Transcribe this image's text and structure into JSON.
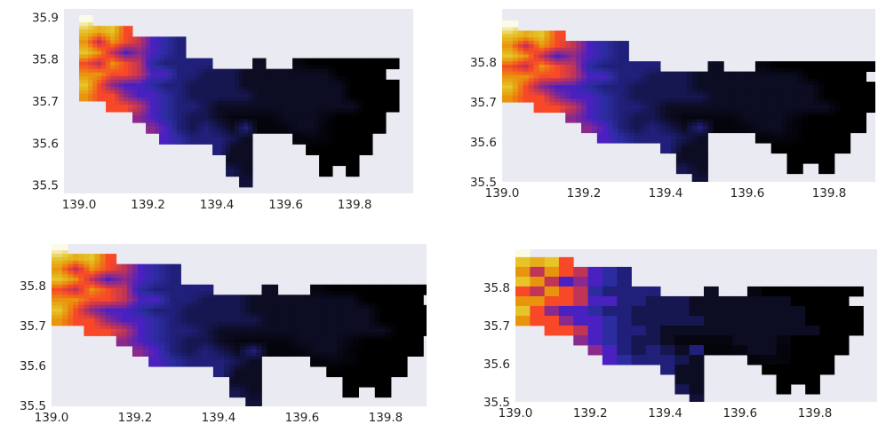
{
  "colormap": {
    "levels": [
      0,
      1,
      2,
      3,
      4,
      5,
      6,
      7,
      8,
      9,
      10,
      11
    ],
    "colors": [
      "#000000",
      "#0c0c22",
      "#161650",
      "#20207a",
      "#2c2ca0",
      "#4a20c0",
      "#8a2a8c",
      "#c03458",
      "#f84828",
      "#e8940c",
      "#e6c42a",
      "#fbfbe8"
    ]
  },
  "axes_background": "#eaeaf2",
  "grid_extent": {
    "lon": [
      139.0,
      139.929
    ],
    "lat": [
      35.905,
      35.495
    ]
  },
  "grid": [
    [
      11,
      null,
      null,
      null,
      null,
      null,
      null,
      null,
      null,
      null,
      null,
      null,
      null,
      null,
      null,
      null,
      null,
      null,
      null,
      null,
      null,
      null,
      null,
      null
    ],
    [
      10,
      9.5,
      10,
      8,
      null,
      null,
      null,
      null,
      null,
      null,
      null,
      null,
      null,
      null,
      null,
      null,
      null,
      null,
      null,
      null,
      null,
      null,
      null,
      null
    ],
    [
      9,
      7,
      9,
      8,
      7,
      5,
      4,
      3,
      null,
      null,
      null,
      null,
      null,
      null,
      null,
      null,
      null,
      null,
      null,
      null,
      null,
      null,
      null,
      null
    ],
    [
      10,
      9,
      7,
      5,
      6,
      5,
      4,
      3,
      null,
      null,
      null,
      null,
      null,
      null,
      null,
      null,
      null,
      null,
      null,
      null,
      null,
      null,
      null,
      null
    ],
    [
      8,
      7,
      9,
      8,
      7,
      4,
      3,
      3,
      3,
      3,
      null,
      null,
      null,
      1,
      null,
      null,
      0.5,
      0,
      0,
      0,
      0,
      0,
      0,
      0
    ],
    [
      9,
      9,
      8,
      8,
      7,
      5,
      5,
      3,
      3,
      2,
      2,
      2,
      1,
      1,
      1,
      1,
      1,
      1,
      1,
      0,
      0,
      0,
      0,
      null
    ],
    [
      10,
      8,
      6,
      5,
      5,
      4,
      3,
      3,
      2,
      2,
      2,
      2,
      1,
      1,
      1,
      1,
      1,
      1,
      1,
      1,
      0,
      0,
      0,
      0
    ],
    [
      9,
      8,
      8,
      6,
      5,
      5,
      4,
      3,
      2,
      2,
      2,
      2,
      2,
      1,
      1,
      1,
      1,
      1,
      1,
      1,
      0,
      0,
      0,
      0
    ],
    [
      null,
      null,
      8,
      8,
      7,
      5,
      4,
      3,
      3,
      2,
      1,
      1,
      1,
      1,
      1,
      1,
      1,
      1,
      1,
      1,
      1,
      0,
      0,
      0
    ],
    [
      null,
      null,
      null,
      null,
      6,
      5,
      4,
      3,
      2,
      2,
      1,
      0.5,
      0.5,
      0.5,
      0.5,
      1,
      1,
      1,
      0.5,
      0,
      0,
      0,
      0,
      null
    ],
    [
      null,
      null,
      null,
      null,
      null,
      6,
      5,
      3,
      2,
      3,
      2,
      1,
      3,
      0.3,
      0.3,
      0.5,
      1,
      1,
      0.3,
      0,
      0,
      0,
      0,
      null
    ],
    [
      null,
      null,
      null,
      null,
      null,
      null,
      5,
      4,
      3,
      3,
      3,
      2,
      1,
      null,
      null,
      null,
      0.3,
      0.5,
      0.3,
      0,
      0,
      0,
      null,
      null
    ],
    [
      null,
      null,
      null,
      null,
      null,
      null,
      null,
      null,
      null,
      null,
      3,
      1,
      1,
      null,
      null,
      null,
      null,
      0,
      0,
      0,
      0,
      0,
      null,
      null
    ],
    [
      null,
      null,
      null,
      null,
      null,
      null,
      null,
      null,
      null,
      null,
      null,
      1,
      1,
      null,
      null,
      null,
      null,
      null,
      0,
      0,
      0,
      null,
      null,
      null
    ],
    [
      null,
      null,
      null,
      null,
      null,
      null,
      null,
      null,
      null,
      null,
      null,
      2,
      1,
      null,
      null,
      null,
      null,
      null,
      0,
      null,
      0,
      null,
      null,
      null
    ],
    [
      null,
      null,
      null,
      null,
      null,
      null,
      null,
      null,
      null,
      null,
      null,
      null,
      1.5,
      null,
      null,
      null,
      null,
      null,
      null,
      null,
      null,
      null,
      null,
      null
    ]
  ],
  "chart_data": [
    {
      "type": "heatmap",
      "resolution": "fine",
      "xlim": [
        138.956,
        139.97
      ],
      "ylim": [
        35.48,
        35.92
      ],
      "xticks": [
        "139.0",
        "139.2",
        "139.4",
        "139.6",
        "139.8"
      ],
      "yticks": [
        "35.5",
        "35.6",
        "35.7",
        "35.8",
        "35.9"
      ],
      "grid": false
    },
    {
      "type": "heatmap",
      "resolution": "fine",
      "xlim": [
        139.0,
        139.913
      ],
      "ylim": [
        35.5,
        35.934
      ],
      "xticks": [
        "139.0",
        "139.2",
        "139.4",
        "139.6",
        "139.8"
      ],
      "yticks": [
        "35.5",
        "35.6",
        "35.7",
        "35.8"
      ],
      "grid": false
    },
    {
      "type": "heatmap",
      "resolution": "fine",
      "xlim": [
        139.0,
        139.898
      ],
      "ylim": [
        35.498,
        35.904
      ],
      "xticks": [
        "139.0",
        "139.2",
        "139.4",
        "139.6",
        "139.8"
      ],
      "yticks": [
        "35.5",
        "35.6",
        "35.7",
        "35.8"
      ],
      "grid": false
    },
    {
      "type": "heatmap",
      "resolution": "coarse",
      "xlim": [
        139.0,
        139.966
      ],
      "ylim": [
        35.5,
        35.9
      ],
      "xticks": [
        "139.0",
        "139.2",
        "139.4",
        "139.6",
        "139.8"
      ],
      "yticks": [
        "35.5",
        "35.6",
        "35.7",
        "35.8"
      ],
      "grid": false
    }
  ]
}
